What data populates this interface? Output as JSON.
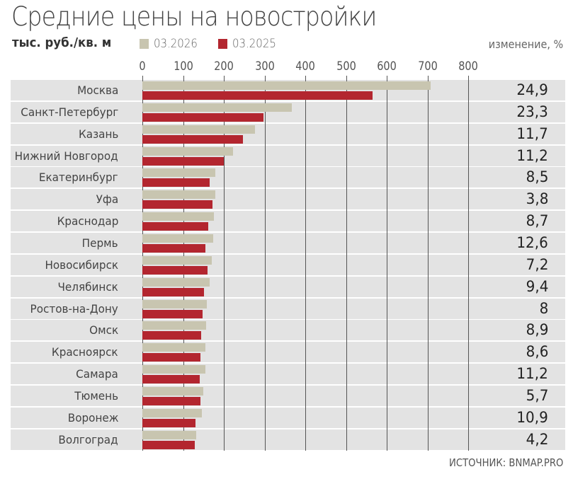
{
  "header": {
    "title": "Средние цены на новостройки",
    "unit": "тыс. руб./кв. м",
    "change_header": "изменение, %"
  },
  "legend": [
    {
      "label": "03.2026",
      "color": "#c8c5b0"
    },
    {
      "label": "03.2025",
      "color": "#b3262f"
    }
  ],
  "axis": {
    "ticks": [
      "0",
      "100",
      "200",
      "300",
      "400",
      "500",
      "600",
      "700",
      "800"
    ]
  },
  "source": "ИСТОЧНИК: BNMAP.PRO",
  "chart_data": {
    "type": "bar",
    "orientation": "horizontal",
    "title": "Средние цены на новостройки",
    "subtitle": "тыс. руб./кв. м",
    "xlabel": "",
    "ylabel": "",
    "xlim": [
      0,
      800
    ],
    "x_ticks": [
      0,
      100,
      200,
      300,
      400,
      500,
      600,
      700,
      800
    ],
    "grid": true,
    "legend_position": "top",
    "categories": [
      "Москва",
      "Санкт-Петербург",
      "Казань",
      "Нижний Новгород",
      "Екатеринбург",
      "Уфа",
      "Краснодар",
      "Пермь",
      "Новосибирск",
      "Челябинск",
      "Ростов-на-Дону",
      "Омск",
      "Красноярск",
      "Самара",
      "Тюмень",
      "Воронеж",
      "Волгоград"
    ],
    "series": [
      {
        "name": "03.2026",
        "color": "#c8c5b0",
        "values": [
          707,
          367,
          276,
          222,
          179,
          179,
          175,
          174,
          171,
          166,
          159,
          157,
          155,
          155,
          150,
          146,
          133
        ]
      },
      {
        "name": "03.2025",
        "color": "#b3262f",
        "values": [
          566,
          298,
          247,
          200,
          165,
          172,
          161,
          155,
          160,
          152,
          148,
          144,
          143,
          140,
          142,
          131,
          128
        ]
      }
    ],
    "change_label": "изменение, %",
    "change_pct": [
      "24,9",
      "23,3",
      "11,7",
      "11,2",
      "8,5",
      "3,8",
      "8,7",
      "12,6",
      "7,2",
      "9,4",
      "8",
      "8,9",
      "8,6",
      "11,2",
      "5,7",
      "10,9",
      "4,2"
    ]
  }
}
